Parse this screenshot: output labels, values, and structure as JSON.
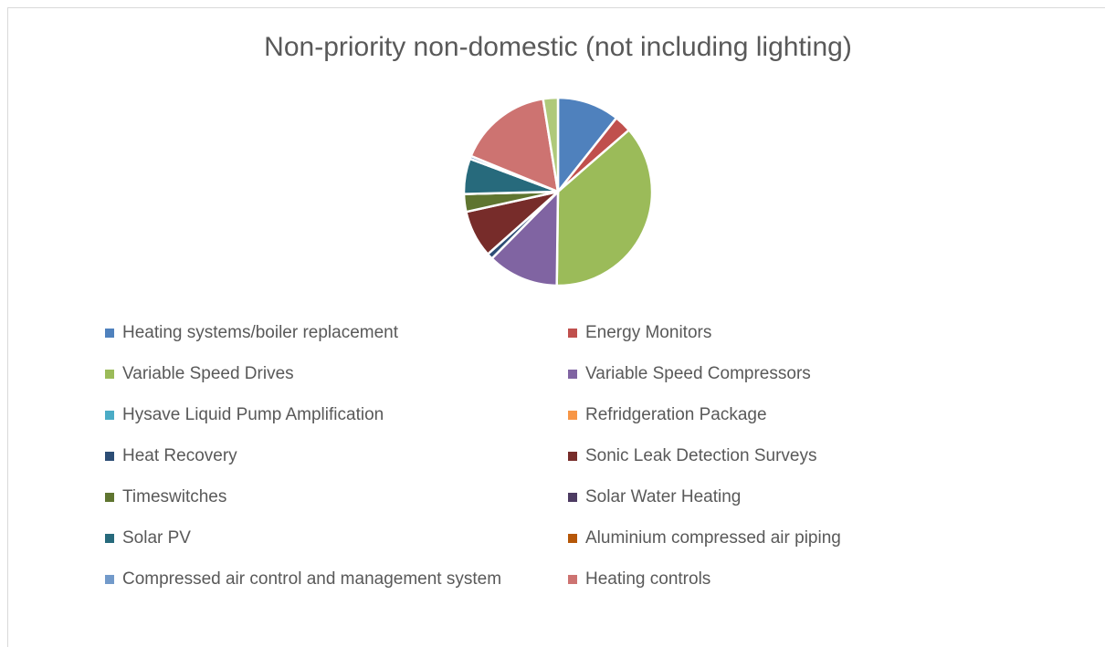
{
  "chart_data": {
    "type": "pie",
    "title": "Non-priority non-domestic (not including lighting)",
    "categories": [
      "Heating systems/boiler replacement",
      "Energy Monitors",
      "Variable Speed Drives",
      "Variable Speed Compressors",
      "Hysave Liquid Pump Amplification",
      "Refridgeration Package",
      "Heat Recovery",
      "Sonic Leak Detection Surveys",
      "Timeswitches",
      "Solar Water Heating",
      "Solar PV",
      "Aluminium compressed air piping",
      "Compressed air control and management system",
      "Heating controls",
      null
    ],
    "values": [
      10.5,
      2.9,
      36,
      12,
      0,
      0,
      1,
      8,
      3,
      0,
      6,
      0,
      0.5,
      16,
      2.5
    ],
    "colors": [
      "#4f81bd",
      "#c0504d",
      "#9bbb59",
      "#8064a2",
      "#4bacc6",
      "#f79646",
      "#2c4d75",
      "#772c2a",
      "#5f7530",
      "#4d3b62",
      "#276a7c",
      "#b65708",
      "#729aca",
      "#cd7371",
      "#afc97a"
    ],
    "legend": "bottom"
  }
}
